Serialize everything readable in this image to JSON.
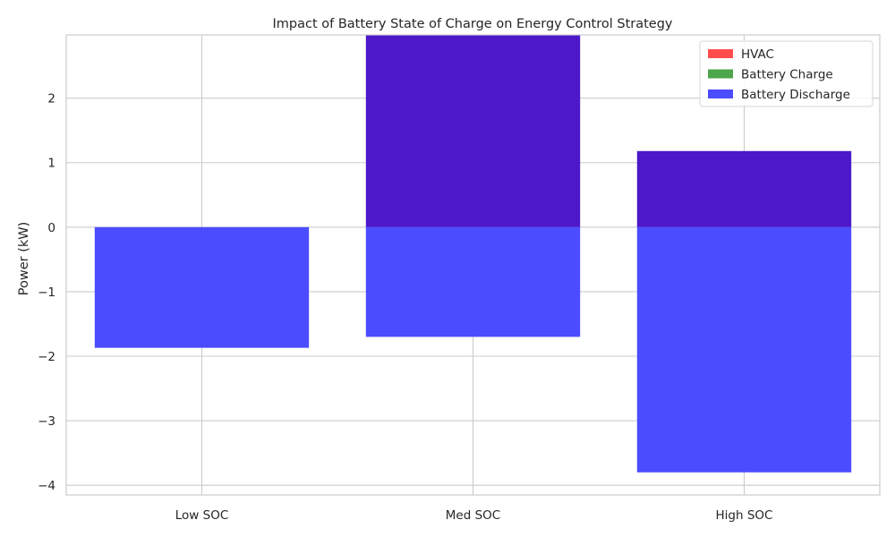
{
  "chart_data": {
    "type": "bar",
    "title": "Impact of Battery State of Charge on Energy Control Strategy",
    "xlabel": "",
    "ylabel": "Power (kW)",
    "categories": [
      "Low SOC",
      "Med SOC",
      "High SOC"
    ],
    "series": [
      {
        "name": "HVAC",
        "color": "#ff4c4c",
        "values": [
          0,
          3.0,
          1.18
        ]
      },
      {
        "name": "Battery Charge",
        "color": "#4ca64c",
        "values": [
          0,
          3.0,
          1.18
        ]
      },
      {
        "name": "Battery Discharge",
        "color": "#4c4cff",
        "values": [
          -1.87,
          -1.7,
          -3.8
        ]
      }
    ],
    "overlap_color": "#4c18c8",
    "ylim": [
      -4.15,
      2.98
    ],
    "yticks": [
      -4,
      -3,
      -2,
      -1,
      0,
      1,
      2
    ],
    "ytick_labels": [
      "−4",
      "−3",
      "−2",
      "−1",
      "0",
      "1",
      "2"
    ],
    "grid": true,
    "legend": "top-right"
  }
}
